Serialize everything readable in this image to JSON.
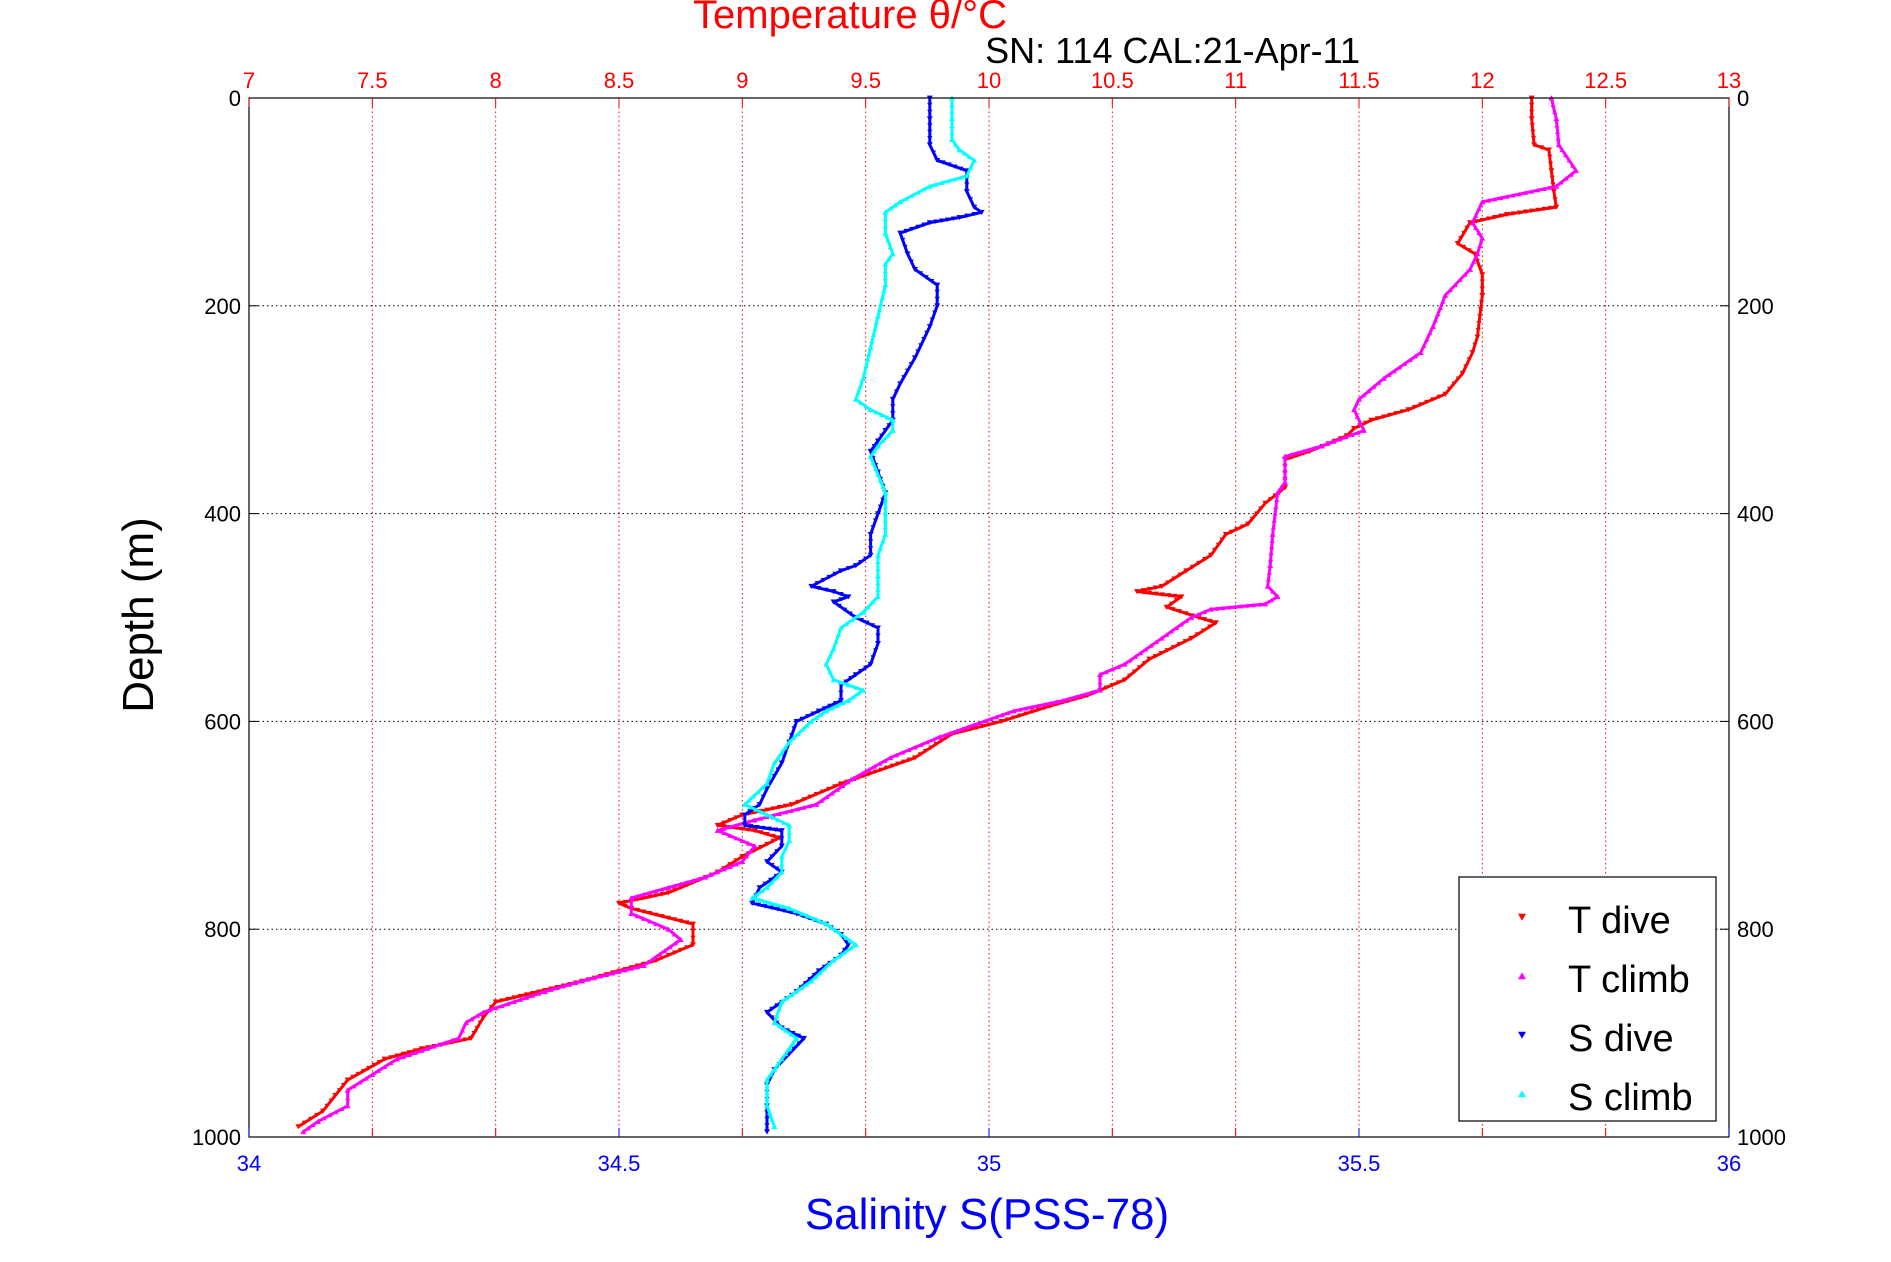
{
  "chart_data": {
    "type": "scatter",
    "title": "Temperature θ/°C",
    "subtitle": "SN: 114  CAL:21-Apr-11",
    "ylabel": "Depth (m)",
    "xlabel_bottom": "Salinity S(PSS-78)",
    "xlabel_top": "Temperature θ/°C",
    "ylim": [
      0,
      1000
    ],
    "y_reversed": true,
    "y_ticks": [
      0,
      200,
      400,
      600,
      800,
      1000
    ],
    "y_tick_labels": [
      "0",
      "200",
      "400",
      "600",
      "800",
      "1000"
    ],
    "temp_axis": {
      "range": [
        7,
        13
      ],
      "ticks": [
        7,
        7.5,
        8,
        8.5,
        9,
        9.5,
        10,
        10.5,
        11,
        11.5,
        12,
        12.5,
        13
      ],
      "tick_labels": [
        "7",
        "7.5",
        "8",
        "8.5",
        "9",
        "9.5",
        "10",
        "10.5",
        "11",
        "11.5",
        "12",
        "12.5",
        "13"
      ],
      "grid": "dotted",
      "color": "#ff0000"
    },
    "sal_axis": {
      "range": [
        34,
        36
      ],
      "ticks": [
        34,
        34.5,
        35,
        35.5,
        36
      ],
      "tick_labels": [
        "34",
        "34.5",
        "35",
        "35.5",
        "36"
      ],
      "color": "#0000ff"
    },
    "legend_position": "bottom-right",
    "series": [
      {
        "name": "T dive",
        "axis": "temp",
        "marker": "triangle-down",
        "color": "#ff0000",
        "points": [
          [
            12.2,
            0
          ],
          [
            12.2,
            20
          ],
          [
            12.21,
            45
          ],
          [
            12.27,
            50
          ],
          [
            12.28,
            70
          ],
          [
            12.29,
            90
          ],
          [
            12.3,
            105
          ],
          [
            12.1,
            112
          ],
          [
            11.95,
            120
          ],
          [
            11.9,
            140
          ],
          [
            11.97,
            150
          ],
          [
            12.0,
            170
          ],
          [
            12.0,
            190
          ],
          [
            11.98,
            230
          ],
          [
            11.96,
            245
          ],
          [
            11.92,
            265
          ],
          [
            11.85,
            285
          ],
          [
            11.7,
            300
          ],
          [
            11.55,
            310
          ],
          [
            11.48,
            318
          ],
          [
            11.45,
            325
          ],
          [
            11.3,
            340
          ],
          [
            11.2,
            348
          ],
          [
            11.2,
            375
          ],
          [
            11.12,
            390
          ],
          [
            11.05,
            410
          ],
          [
            10.96,
            420
          ],
          [
            10.9,
            440
          ],
          [
            10.8,
            455
          ],
          [
            10.7,
            470
          ],
          [
            10.6,
            475
          ],
          [
            10.78,
            480
          ],
          [
            10.72,
            490
          ],
          [
            10.85,
            500
          ],
          [
            10.92,
            505
          ],
          [
            10.82,
            520
          ],
          [
            10.65,
            540
          ],
          [
            10.55,
            560
          ],
          [
            10.4,
            575
          ],
          [
            10.25,
            585
          ],
          [
            10.05,
            600
          ],
          [
            9.85,
            612
          ],
          [
            9.7,
            635
          ],
          [
            9.4,
            660
          ],
          [
            9.2,
            680
          ],
          [
            9.0,
            690
          ],
          [
            8.9,
            700
          ],
          [
            9.05,
            705
          ],
          [
            9.15,
            712
          ],
          [
            9.0,
            730
          ],
          [
            8.9,
            745
          ],
          [
            8.7,
            765
          ],
          [
            8.5,
            775
          ],
          [
            8.55,
            780
          ],
          [
            8.8,
            795
          ],
          [
            8.8,
            815
          ],
          [
            8.65,
            830
          ],
          [
            8.35,
            850
          ],
          [
            8.0,
            870
          ],
          [
            7.95,
            885
          ],
          [
            7.9,
            905
          ],
          [
            7.7,
            915
          ],
          [
            7.55,
            925
          ],
          [
            7.4,
            945
          ],
          [
            7.35,
            960
          ],
          [
            7.3,
            975
          ],
          [
            7.2,
            990
          ]
        ]
      },
      {
        "name": "T climb",
        "axis": "temp",
        "marker": "triangle-up",
        "color": "#ff00ff",
        "points": [
          [
            12.28,
            0
          ],
          [
            12.3,
            20
          ],
          [
            12.31,
            45
          ],
          [
            12.38,
            70
          ],
          [
            12.3,
            85
          ],
          [
            12.0,
            100
          ],
          [
            11.96,
            120
          ],
          [
            12.0,
            135
          ],
          [
            11.98,
            150
          ],
          [
            11.95,
            165
          ],
          [
            11.85,
            190
          ],
          [
            11.8,
            220
          ],
          [
            11.75,
            245
          ],
          [
            11.6,
            270
          ],
          [
            11.5,
            290
          ],
          [
            11.48,
            300
          ],
          [
            11.52,
            320
          ],
          [
            11.35,
            335
          ],
          [
            11.2,
            345
          ],
          [
            11.2,
            370
          ],
          [
            11.17,
            380
          ],
          [
            11.15,
            420
          ],
          [
            11.14,
            450
          ],
          [
            11.13,
            470
          ],
          [
            11.17,
            480
          ],
          [
            11.12,
            487
          ],
          [
            10.9,
            492
          ],
          [
            10.82,
            500
          ],
          [
            10.7,
            520
          ],
          [
            10.55,
            545
          ],
          [
            10.45,
            555
          ],
          [
            10.45,
            570
          ],
          [
            10.3,
            580
          ],
          [
            10.1,
            590
          ],
          [
            9.8,
            615
          ],
          [
            9.6,
            635
          ],
          [
            9.45,
            655
          ],
          [
            9.3,
            680
          ],
          [
            9.05,
            695
          ],
          [
            8.9,
            705
          ],
          [
            9.05,
            720
          ],
          [
            9.0,
            735
          ],
          [
            8.85,
            750
          ],
          [
            8.7,
            760
          ],
          [
            8.55,
            770
          ],
          [
            8.55,
            785
          ],
          [
            8.7,
            800
          ],
          [
            8.75,
            810
          ],
          [
            8.6,
            835
          ],
          [
            8.35,
            850
          ],
          [
            8.2,
            860
          ],
          [
            7.95,
            880
          ],
          [
            7.88,
            890
          ],
          [
            7.85,
            905
          ],
          [
            7.6,
            925
          ],
          [
            7.5,
            940
          ],
          [
            7.4,
            955
          ],
          [
            7.4,
            970
          ],
          [
            7.28,
            985
          ],
          [
            7.22,
            995
          ]
        ]
      },
      {
        "name": "S dive",
        "axis": "sal",
        "marker": "triangle-down",
        "color": "#0000ff",
        "points": [
          [
            34.92,
            0
          ],
          [
            34.92,
            20
          ],
          [
            34.92,
            45
          ],
          [
            34.93,
            60
          ],
          [
            34.97,
            70
          ],
          [
            34.97,
            90
          ],
          [
            34.98,
            105
          ],
          [
            34.99,
            110
          ],
          [
            34.96,
            115
          ],
          [
            34.92,
            120
          ],
          [
            34.88,
            130
          ],
          [
            34.89,
            150
          ],
          [
            34.9,
            165
          ],
          [
            34.93,
            180
          ],
          [
            34.93,
            200
          ],
          [
            34.92,
            220
          ],
          [
            34.9,
            250
          ],
          [
            34.88,
            275
          ],
          [
            34.87,
            290
          ],
          [
            34.87,
            310
          ],
          [
            34.86,
            320
          ],
          [
            34.85,
            330
          ],
          [
            34.84,
            340
          ],
          [
            34.85,
            360
          ],
          [
            34.86,
            380
          ],
          [
            34.85,
            400
          ],
          [
            34.84,
            420
          ],
          [
            34.84,
            440
          ],
          [
            34.82,
            450
          ],
          [
            34.8,
            455
          ],
          [
            34.76,
            470
          ],
          [
            34.79,
            475
          ],
          [
            34.81,
            480
          ],
          [
            34.79,
            485
          ],
          [
            34.82,
            500
          ],
          [
            34.85,
            510
          ],
          [
            34.85,
            525
          ],
          [
            34.84,
            545
          ],
          [
            34.82,
            555
          ],
          [
            34.8,
            565
          ],
          [
            34.8,
            580
          ],
          [
            34.77,
            590
          ],
          [
            34.74,
            600
          ],
          [
            34.73,
            620
          ],
          [
            34.72,
            640
          ],
          [
            34.7,
            665
          ],
          [
            34.69,
            680
          ],
          [
            34.67,
            690
          ],
          [
            34.67,
            700
          ],
          [
            34.72,
            705
          ],
          [
            34.72,
            720
          ],
          [
            34.7,
            735
          ],
          [
            34.72,
            745
          ],
          [
            34.69,
            760
          ],
          [
            34.68,
            775
          ],
          [
            34.74,
            785
          ],
          [
            34.78,
            795
          ],
          [
            34.8,
            805
          ],
          [
            34.81,
            815
          ],
          [
            34.8,
            825
          ],
          [
            34.77,
            840
          ],
          [
            34.74,
            860
          ],
          [
            34.7,
            880
          ],
          [
            34.72,
            895
          ],
          [
            34.75,
            905
          ],
          [
            34.73,
            920
          ],
          [
            34.71,
            935
          ],
          [
            34.7,
            950
          ],
          [
            34.7,
            970
          ],
          [
            34.7,
            995
          ]
        ]
      },
      {
        "name": "S climb",
        "axis": "sal",
        "marker": "triangle-up",
        "color": "#00ffff",
        "points": [
          [
            34.95,
            0
          ],
          [
            34.95,
            20
          ],
          [
            34.95,
            40
          ],
          [
            34.96,
            50
          ],
          [
            34.98,
            60
          ],
          [
            34.97,
            75
          ],
          [
            34.92,
            85
          ],
          [
            34.88,
            100
          ],
          [
            34.86,
            110
          ],
          [
            34.86,
            130
          ],
          [
            34.87,
            150
          ],
          [
            34.86,
            160
          ],
          [
            34.86,
            180
          ],
          [
            34.85,
            210
          ],
          [
            34.84,
            240
          ],
          [
            34.83,
            270
          ],
          [
            34.82,
            290
          ],
          [
            34.84,
            300
          ],
          [
            34.87,
            310
          ],
          [
            34.87,
            320
          ],
          [
            34.85,
            335
          ],
          [
            34.84,
            345
          ],
          [
            34.86,
            380
          ],
          [
            34.86,
            420
          ],
          [
            34.85,
            440
          ],
          [
            34.85,
            460
          ],
          [
            34.85,
            480
          ],
          [
            34.83,
            495
          ],
          [
            34.8,
            510
          ],
          [
            34.79,
            530
          ],
          [
            34.78,
            545
          ],
          [
            34.79,
            560
          ],
          [
            34.81,
            565
          ],
          [
            34.83,
            570
          ],
          [
            34.81,
            580
          ],
          [
            34.78,
            590
          ],
          [
            34.76,
            600
          ],
          [
            34.73,
            620
          ],
          [
            34.71,
            640
          ],
          [
            34.7,
            660
          ],
          [
            34.67,
            680
          ],
          [
            34.7,
            690
          ],
          [
            34.73,
            700
          ],
          [
            34.73,
            715
          ],
          [
            34.72,
            730
          ],
          [
            34.72,
            745
          ],
          [
            34.7,
            760
          ],
          [
            34.68,
            770
          ],
          [
            34.73,
            780
          ],
          [
            34.78,
            795
          ],
          [
            34.82,
            815
          ],
          [
            34.79,
            830
          ],
          [
            34.76,
            850
          ],
          [
            34.72,
            870
          ],
          [
            34.71,
            890
          ],
          [
            34.74,
            905
          ],
          [
            34.73,
            915
          ],
          [
            34.71,
            935
          ],
          [
            34.7,
            945
          ],
          [
            34.7,
            970
          ],
          [
            34.71,
            990
          ]
        ]
      }
    ]
  }
}
